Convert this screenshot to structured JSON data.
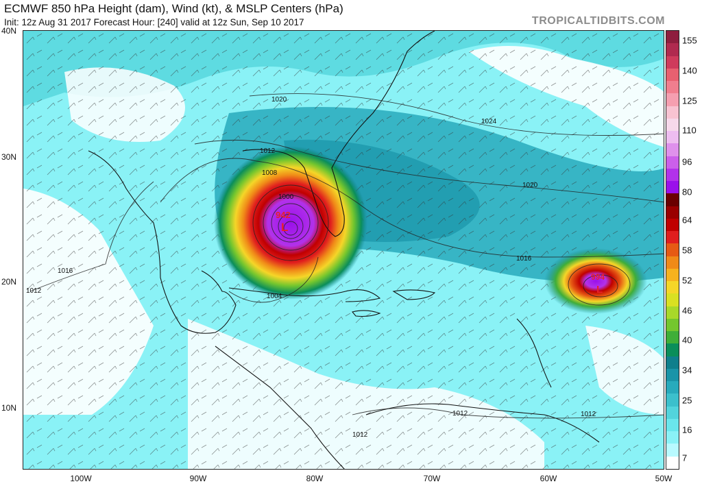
{
  "header": {
    "title": "ECMWF 850 hPa Height (dam), Wind (kt), & MSLP Centers (hPa)",
    "subtitle": "Init: 12z Aug 31 2017   Forecast Hour: [240]   valid at 12z Sun, Sep 10 2017",
    "brand": "TROPICALTIDBITS.COM"
  },
  "axes": {
    "lat_labels": [
      "40N",
      "30N",
      "20N",
      "10N"
    ],
    "lon_labels": [
      "100W",
      "90W",
      "80W",
      "70W",
      "60W",
      "50W"
    ]
  },
  "colorbar": {
    "labels": [
      "155",
      "140",
      "125",
      "110",
      "96",
      "80",
      "64",
      "58",
      "52",
      "46",
      "40",
      "34",
      "25",
      "16",
      "7"
    ],
    "colors": [
      "#8e1e3e",
      "#b02a4f",
      "#cf3b5c",
      "#e86070",
      "#f07e8e",
      "#f59fb0",
      "#f8c3d2",
      "#f6d8ea",
      "#eebdf0",
      "#df91ec",
      "#cb60ea",
      "#b232ea",
      "#9a10ea",
      "#6a0000",
      "#9a0000",
      "#c00000",
      "#e01e1e",
      "#e65a14",
      "#f08a18",
      "#f6b21e",
      "#f5d628",
      "#d9e022",
      "#a8d82a",
      "#74c62e",
      "#3fae38",
      "#0a8e5a",
      "#0f7f8c",
      "#1a94a8",
      "#28aabc",
      "#3cc0cc",
      "#52d4dc",
      "#6ae6ec",
      "#8af2f6",
      "#b8faff",
      "#ffffff"
    ]
  },
  "map": {
    "pressure_labels": [
      "1020",
      "1024",
      "1012",
      "1008",
      "1000",
      "1020",
      "1016",
      "1004",
      "1016",
      "1012",
      "1012",
      "1012",
      "1012"
    ],
    "storms": [
      {
        "symbol": "L",
        "pressure": "942"
      },
      {
        "symbol": "L",
        "pressure": "994"
      }
    ]
  }
}
